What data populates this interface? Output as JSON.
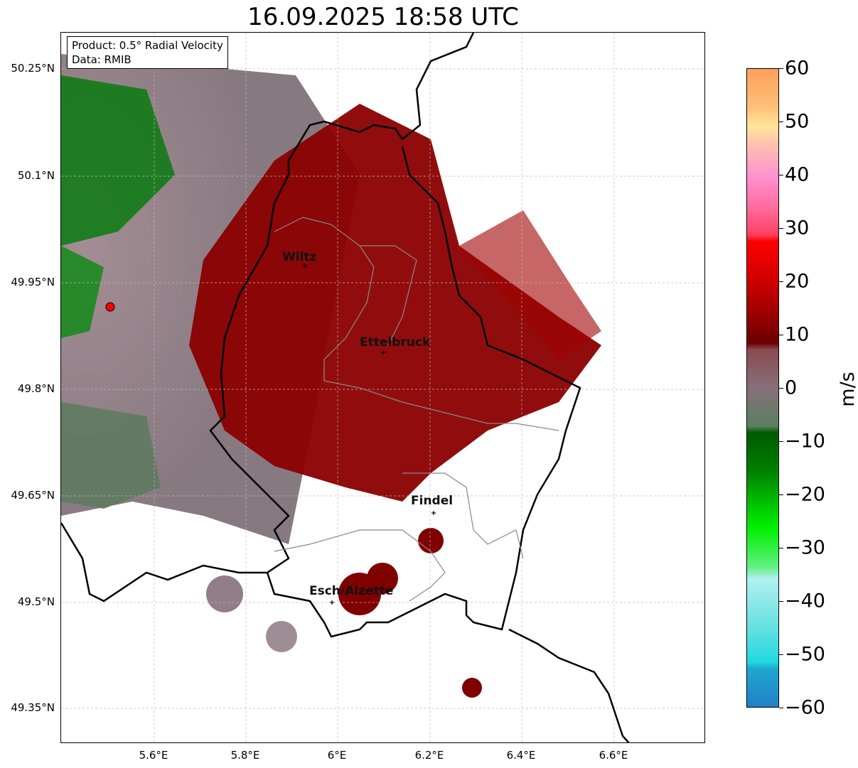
{
  "title": "16.09.2025 18:58 UTC",
  "info": {
    "product": "Product: 0.5° Radial Velocity",
    "data": "Data: RMIB"
  },
  "lat_ticks": [
    "50.25°N",
    "50.1°N",
    "49.95°N",
    "49.8°N",
    "49.65°N",
    "49.5°N",
    "49.35°N"
  ],
  "lon_ticks": [
    "5.6°E",
    "5.8°E",
    "6°E",
    "6.2°E",
    "6.4°E",
    "6.6°E"
  ],
  "cities": [
    "Wiltz",
    "Ettelbruck",
    "Findel",
    "Esch/Alzette"
  ],
  "colorbar": {
    "label": "m/s",
    "ticks": [
      "60",
      "50",
      "40",
      "30",
      "20",
      "10",
      "0",
      "−10",
      "−20",
      "−30",
      "−40",
      "−50",
      "−60"
    ],
    "range": [
      -60,
      60
    ]
  },
  "colors": {
    "radar_site": "#ff0000",
    "inbound": "#008000",
    "outbound": "#8b0000",
    "near_zero": "#86707a"
  }
}
